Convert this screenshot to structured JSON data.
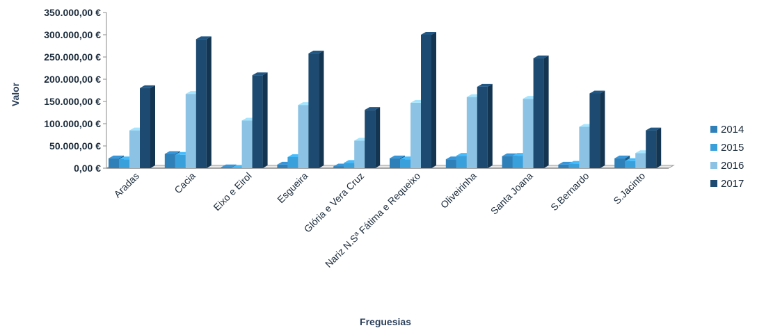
{
  "chart_data": {
    "type": "bar",
    "title": "",
    "xlabel": "Freguesias",
    "ylabel": "Valor",
    "ylim": [
      0,
      350000
    ],
    "yticks": [
      0,
      50000,
      100000,
      150000,
      200000,
      250000,
      300000,
      350000
    ],
    "ytick_labels": [
      "0,00 €",
      "50.000,00 €",
      "100.000,00 €",
      "150.000,00 €",
      "200.000,00 €",
      "250.000,00 €",
      "300.000,00 €",
      "350.000,00 €"
    ],
    "grid": false,
    "legend_position": "right",
    "categories": [
      "Aradas",
      "Cacia",
      "Eixo e Eirol",
      "Esgueira",
      "Glória e Vera Cruz",
      "Nariz N.Sª Fátima e Requeixo",
      "Oliveirinha",
      "Santa Joana",
      "S.Bernardo",
      "S.Jacinto"
    ],
    "series": [
      {
        "name": "2014",
        "color": "#2f7fb8",
        "values": [
          22000,
          32000,
          2000,
          8000,
          4000,
          22000,
          20000,
          27000,
          8000,
          22000
        ]
      },
      {
        "name": "2015",
        "color": "#3aa0dc",
        "values": [
          20000,
          30000,
          1000,
          25000,
          12000,
          20000,
          28000,
          28000,
          10000,
          16000
        ]
      },
      {
        "name": "2016",
        "color": "#8cc2e4",
        "values": [
          85000,
          167000,
          107000,
          142000,
          62000,
          147000,
          160000,
          156000,
          93000,
          34000
        ]
      },
      {
        "name": "2017",
        "color": "#1c4a70",
        "values": [
          180000,
          290000,
          209000,
          258000,
          131000,
          300000,
          183000,
          247000,
          168000,
          85000
        ]
      }
    ]
  }
}
